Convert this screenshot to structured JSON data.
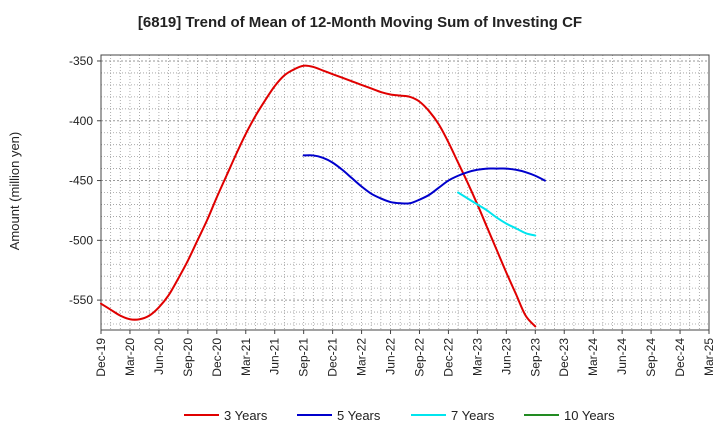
{
  "chart_data": {
    "type": "line",
    "title": "[6819]  Trend of Mean of 12-Month Moving Sum of Investing CF",
    "xlabel": "",
    "ylabel": "Amount (million yen)",
    "ylim": [
      -575,
      -345
    ],
    "yticks": [
      -350,
      -400,
      -450,
      -500,
      -550
    ],
    "ytick_labels": [
      "-350",
      "-400",
      "-450",
      "-500",
      "-550"
    ],
    "x_start": "Dec-19",
    "x_end": "Mar-25",
    "xtick_labels": [
      "Dec-19",
      "Mar-20",
      "Jun-20",
      "Sep-20",
      "Dec-20",
      "Mar-21",
      "Jun-21",
      "Sep-21",
      "Dec-21",
      "Mar-22",
      "Jun-22",
      "Sep-22",
      "Dec-22",
      "Mar-23",
      "Jun-23",
      "Sep-23",
      "Dec-23",
      "Mar-24",
      "Jun-24",
      "Sep-24",
      "Dec-24",
      "Mar-25"
    ],
    "grid": true,
    "legend_position": "bottom",
    "series": [
      {
        "name": "3 Years",
        "color": "#e00000",
        "start_index": 0,
        "values": [
          -553,
          -558,
          -563,
          -566,
          -566,
          -563,
          -556,
          -546,
          -532,
          -517,
          -500,
          -483,
          -464,
          -446,
          -428,
          -411,
          -396,
          -383,
          -371,
          -362,
          -357,
          -354,
          -355,
          -358,
          -361,
          -364,
          -367,
          -370,
          -373,
          -376,
          -378,
          -379,
          -380,
          -384,
          -392,
          -403,
          -418,
          -435,
          -452,
          -470,
          -489,
          -508,
          -527,
          -545,
          -563,
          -572
        ]
      },
      {
        "name": "5 Years",
        "color": "#0000cc",
        "start_index": 21,
        "values": [
          -429,
          -429,
          -431,
          -435,
          -441,
          -448,
          -455,
          -461,
          -465,
          -468,
          -469,
          -469,
          -466,
          -462,
          -456,
          -450,
          -446,
          -443,
          -441,
          -440,
          -440,
          -440,
          -441,
          -443,
          -446,
          -450
        ]
      },
      {
        "name": "7 Years",
        "color": "#00e5ee",
        "start_index": 37,
        "values": [
          -460,
          -465,
          -470,
          -475,
          -481,
          -486,
          -490,
          -494,
          -496
        ]
      },
      {
        "name": "10 Years",
        "color": "#228b22",
        "start_index": 0,
        "values": []
      }
    ]
  }
}
